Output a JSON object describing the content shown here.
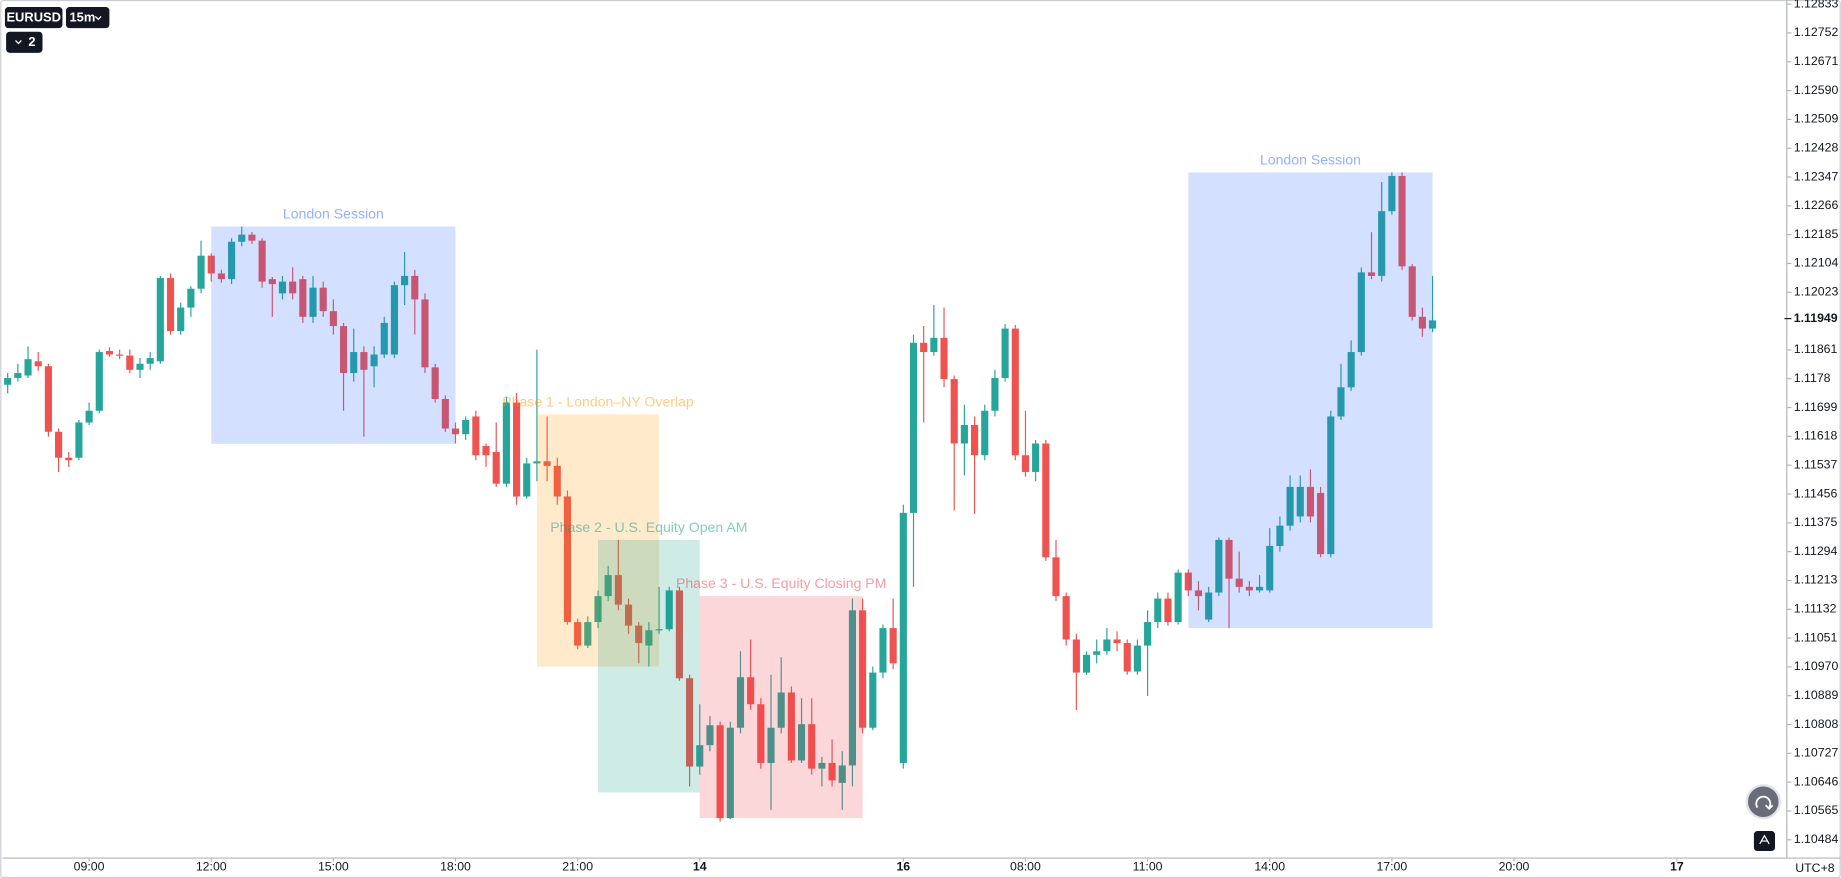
{
  "chart_data": {
    "type": "candlestick",
    "symbol": "EURUSD",
    "interval": "15m",
    "indicator_count": 2,
    "timezone": "UTC+8",
    "up_color": "#26a69a",
    "down_color": "#ef5350",
    "grid": false,
    "xlim": [
      -0.5,
      174.8
    ],
    "xticks": [
      {
        "value": 8,
        "label": "09:00"
      },
      {
        "value": 20,
        "label": "12:00"
      },
      {
        "value": 32,
        "label": "15:00"
      },
      {
        "value": 44,
        "label": "18:00"
      },
      {
        "value": 56,
        "label": "21:00"
      },
      {
        "value": 68,
        "label": "14"
      },
      {
        "value": 88,
        "label": "16"
      },
      {
        "value": 100,
        "label": "08:00"
      },
      {
        "value": 112,
        "label": "11:00"
      },
      {
        "value": 124,
        "label": "14:00"
      },
      {
        "value": 136,
        "label": "17:00"
      },
      {
        "value": 148,
        "label": "20:00"
      },
      {
        "value": 164,
        "label": "17"
      }
    ],
    "ylim": [
      1.10436,
      1.12838
    ],
    "yticks": [
      1.12833,
      1.12752,
      1.12671,
      {
        "value": 1.1259,
        "label": "1.12590"
      },
      1.12509,
      1.12428,
      1.12347,
      1.12266,
      1.12185,
      1.12104,
      1.12023,
      1.11861,
      1.1178,
      1.11699,
      1.11618,
      1.11537,
      1.11456,
      1.11375,
      1.11294,
      1.11213,
      1.11132,
      1.11051,
      {
        "value": 1.1097,
        "label": "1.10970"
      },
      1.10889,
      1.10808,
      1.10727,
      1.10646,
      1.10565,
      1.10484
    ],
    "current_price": 1.11949,
    "annotations": [
      {
        "label": "London Session",
        "color": "#2962ff",
        "x": [
          20,
          44
        ],
        "y": [
          1.12208,
          1.11597
        ]
      },
      {
        "label": "Phase 1 - London–NY Overlap",
        "color": "#ff9800",
        "x": [
          52,
          64
        ],
        "y": [
          1.1168,
          1.10971
        ]
      },
      {
        "label": "Phase 2 - U.S. Equity Open AM",
        "color": "#089981",
        "x": [
          58,
          68
        ],
        "y": [
          1.11327,
          1.10617
        ]
      },
      {
        "label": "Phase 3 - U.S. Equity Closing PM",
        "color": "#f23645",
        "x": [
          68,
          84
        ],
        "y": [
          1.11169,
          1.10545
        ]
      },
      {
        "label": "London Session",
        "color": "#2962ff",
        "x": [
          116,
          140
        ],
        "y": [
          1.1236,
          1.11079
        ]
      }
    ],
    "open": [
      1.11763,
      1.11782,
      1.11789,
      1.11829,
      1.11815,
      1.11631,
      1.11558,
      1.11558,
      1.11657,
      1.1169,
      1.11858,
      1.11848,
      1.11845,
      1.11805,
      1.11822,
      1.11829,
      1.12063,
      1.11914,
      1.1198,
      1.12033,
      1.12126,
      1.12076,
      1.1206,
      1.12165,
      1.12185,
      1.12168,
      1.1206,
      1.1202,
      1.12053,
      1.1206,
      1.11954,
      1.12036,
      1.1197,
      1.11928,
      1.11796,
      1.11855,
      1.11815,
      1.11848,
      1.11848,
      1.12043,
      1.12069,
      1.12003,
      1.11812,
      1.11723,
      1.1164,
      1.11624,
      1.11674,
      1.11591,
      1.11574,
      1.11485,
      1.11713,
      1.11449,
      1.11542,
      1.11548,
      1.11535,
      1.11449,
      1.11096,
      1.1103,
      1.11096,
      1.11169,
      1.11228,
      1.11145,
      1.11086,
      1.1103,
      1.11073,
      1.11076,
      1.11185,
      1.10938,
      1.1069,
      1.1075,
      1.10806,
      1.10545,
      1.10799,
      1.10941,
      1.10865,
      1.107,
      1.10799,
      1.10898,
      1.10707,
      1.10809,
      1.10684,
      1.107,
      1.10644,
      1.10693,
      1.11129,
      1.10799,
      1.10954,
      1.11079,
      1.107,
      1.11403,
      1.11881,
      1.11855,
      1.11895,
      1.11779,
      1.11598,
      1.1165,
      1.11565,
      1.1169,
      1.11782,
      1.11921,
      1.11565,
      1.11518,
      1.11598,
      1.11278,
      1.11169,
      1.11047,
      1.10954,
      1.11004,
      1.11014,
      1.11047,
      1.11037,
      1.10957,
      1.1103,
      1.11096,
      1.11162,
      1.11096,
      1.11235,
      1.11185,
      1.11103,
      1.11179,
      1.11327,
      1.11218,
      1.11195,
      1.11185,
      1.11185,
      1.1131,
      1.11367,
      1.11393,
      1.11476,
      1.11459,
      1.11287,
      1.11674,
      1.11756,
      1.11855,
      1.12079,
      1.12069,
      1.12251,
      1.1235,
      1.12096,
      1.11954,
      1.11921
    ],
    "high": [
      1.11796,
      1.11822,
      1.11871,
      1.11855,
      1.11822,
      1.1164,
      1.11574,
      1.11664,
      1.11713,
      1.11862,
      1.11868,
      1.11862,
      1.11862,
      1.11838,
      1.11855,
      1.12069,
      1.12076,
      1.11994,
      1.1204,
      1.12168,
      1.12132,
      1.12086,
      1.12175,
      1.12208,
      1.12192,
      1.12175,
      1.12066,
      1.12069,
      1.12093,
      1.12069,
      1.12069,
      1.12053,
      1.12003,
      1.11937,
      1.11921,
      1.11871,
      1.11871,
      1.11954,
      1.12053,
      1.12136,
      1.12086,
      1.1202,
      1.11822,
      1.11733,
      1.11657,
      1.11674,
      1.1169,
      1.11598,
      1.11657,
      1.1173,
      1.1174,
      1.11558,
      1.11862,
      1.11674,
      1.11558,
      1.11466,
      1.11106,
      1.11112,
      1.11185,
      1.11254,
      1.11327,
      1.11162,
      1.11096,
      1.11096,
      1.11195,
      1.11195,
      1.11195,
      1.10948,
      1.10865,
      1.10832,
      1.10816,
      1.10816,
      1.11014,
      1.11047,
      1.10882,
      1.10948,
      1.10997,
      1.10915,
      1.10882,
      1.10882,
      1.10717,
      1.10766,
      1.10733,
      1.11162,
      1.11162,
      1.10971,
      1.11089,
      1.11162,
      1.11426,
      1.11904,
      1.11928,
      1.11987,
      1.1198,
      1.11789,
      1.11707,
      1.11674,
      1.11707,
      1.11805,
      1.11934,
      1.11931,
      1.1169,
      1.11608,
      1.11608,
      1.11327,
      1.11179,
      1.11063,
      1.11014,
      1.11047,
      1.11079,
      1.1107,
      1.11047,
      1.11047,
      1.11129,
      1.11179,
      1.11179,
      1.11244,
      1.11244,
      1.11211,
      1.11195,
      1.11334,
      1.11334,
      1.11294,
      1.11211,
      1.11228,
      1.1136,
      1.11393,
      1.11508,
      1.11508,
      1.11525,
      1.11476,
      1.1169,
      1.11822,
      1.11888,
      1.12093,
      1.12192,
      1.12333,
      1.1236,
      1.1236,
      1.12102,
      1.1198,
      1.12069
    ],
    "low": [
      1.11739,
      1.11772,
      1.11782,
      1.11802,
      1.11617,
      1.11518,
      1.11532,
      1.11551,
      1.1165,
      1.11683,
      1.11842,
      1.11835,
      1.11796,
      1.11782,
      1.11805,
      1.11822,
      1.11904,
      1.11904,
      1.11954,
      1.1202,
      1.12053,
      1.1205,
      1.12046,
      1.12152,
      1.12159,
      1.12036,
      1.11954,
      1.12003,
      1.12003,
      1.11937,
      1.11937,
      1.11954,
      1.11904,
      1.1169,
      1.11772,
      1.11617,
      1.11756,
      1.11838,
      1.11838,
      1.11987,
      1.11904,
      1.11796,
      1.11713,
      1.11631,
      1.11598,
      1.11608,
      1.11551,
      1.11532,
      1.11476,
      1.11476,
      1.11426,
      1.11443,
      1.11492,
      1.11492,
      1.11426,
      1.11089,
      1.1102,
      1.11023,
      1.11079,
      1.11155,
      1.11129,
      1.11063,
      1.1098,
      1.10971,
      1.11063,
      1.1107,
      1.10931,
      1.10634,
      1.10667,
      1.10733,
      1.10535,
      1.10542,
      1.10783,
      1.10849,
      1.10684,
      1.10568,
      1.10783,
      1.107,
      1.107,
      1.10667,
      1.10634,
      1.10634,
      1.10568,
      1.10634,
      1.10783,
      1.10792,
      1.10938,
      1.10964,
      1.10684,
      1.11195,
      1.11657,
      1.11845,
      1.11756,
      1.1141,
      1.11508,
      1.114,
      1.11551,
      1.11674,
      1.11772,
      1.11551,
      1.11505,
      1.11492,
      1.11268,
      1.11155,
      1.1103,
      1.10849,
      1.10948,
      1.1098,
      1.11004,
      1.11014,
      1.10948,
      1.10948,
      1.10888,
      1.11079,
      1.11086,
      1.11089,
      1.11169,
      1.11129,
      1.11096,
      1.11169,
      1.11079,
      1.11179,
      1.11169,
      1.11179,
      1.11179,
      1.11294,
      1.11353,
      1.11376,
      1.11376,
      1.11278,
      1.11278,
      1.11664,
      1.11746,
      1.11845,
      1.1206,
      1.12053,
      1.12241,
      1.12086,
      1.11944,
      1.11898,
      1.11911
    ],
    "close": [
      1.11782,
      1.11796,
      1.11835,
      1.11815,
      1.11631,
      1.11558,
      1.11551,
      1.11657,
      1.1169,
      1.11855,
      1.11848,
      1.11845,
      1.11805,
      1.11822,
      1.11838,
      1.12063,
      1.11914,
      1.1198,
      1.12033,
      1.12126,
      1.12076,
      1.1206,
      1.12165,
      1.12185,
      1.12168,
      1.12053,
      1.12046,
      1.12053,
      1.1202,
      1.11954,
      1.12036,
      1.1197,
      1.11928,
      1.11796,
      1.11855,
      1.11805,
      1.11848,
      1.11937,
      1.12043,
      1.12069,
      1.12003,
      1.11812,
      1.11723,
      1.1164,
      1.11624,
      1.11664,
      1.11565,
      1.11565,
      1.11485,
      1.11713,
      1.11449,
      1.11542,
      1.11548,
      1.11535,
      1.11449,
      1.11096,
      1.1103,
      1.11096,
      1.11169,
      1.11228,
      1.11145,
      1.11086,
      1.11037,
      1.11073,
      1.11076,
      1.11185,
      1.10938,
      1.1069,
      1.1075,
      1.10806,
      1.10545,
      1.10799,
      1.10941,
      1.10865,
      1.107,
      1.10799,
      1.10898,
      1.10707,
      1.10809,
      1.10684,
      1.107,
      1.10651,
      1.10693,
      1.11129,
      1.10799,
      1.10954,
      1.11079,
      1.1098,
      1.11403,
      1.11881,
      1.11855,
      1.11895,
      1.11779,
      1.11598,
      1.1165,
      1.11565,
      1.1169,
      1.11782,
      1.11921,
      1.11565,
      1.11518,
      1.11598,
      1.11278,
      1.11169,
      1.11047,
      1.10954,
      1.11004,
      1.11014,
      1.11047,
      1.11037,
      1.10957,
      1.1103,
      1.11096,
      1.11162,
      1.11096,
      1.11235,
      1.11185,
      1.11169,
      1.11179,
      1.11327,
      1.11218,
      1.11195,
      1.11185,
      1.11195,
      1.1131,
      1.11367,
      1.11476,
      1.11476,
      1.11393,
      1.11287,
      1.11674,
      1.11756,
      1.11855,
      1.12079,
      1.12069,
      1.12251,
      1.1235,
      1.12096,
      1.11954,
      1.11921,
      1.11944
    ]
  }
}
